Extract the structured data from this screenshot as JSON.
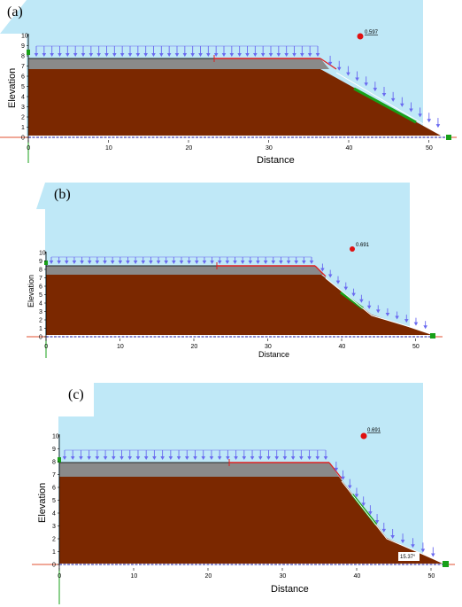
{
  "panels": [
    {
      "label": "(a)",
      "fos": "0.597",
      "xlabel": "Distance",
      "ylabel": "Elevation",
      "angle": ""
    },
    {
      "label": "(b)",
      "fos": "0.691",
      "xlabel": "Distance",
      "ylabel": "Elevation",
      "angle": ""
    },
    {
      "label": "(c)",
      "fos": "0.691",
      "xlabel": "Distance",
      "ylabel": "Elevation",
      "angle": "15.37°"
    }
  ],
  "x_ticks": [
    "0",
    "10",
    "20",
    "30",
    "40",
    "50"
  ],
  "y_ticks": [
    "0",
    "1",
    "2",
    "3",
    "4",
    "5",
    "6",
    "7",
    "8",
    "9",
    "10"
  ],
  "colors": {
    "sky": "#bfe8f7",
    "soil": "#7b2800",
    "fill_layer": "#8a8a8a",
    "load_arrows": "#6a6af0",
    "slip_line": "#e02020",
    "fos_point": "#e01010",
    "axis_red": "#e05030",
    "base_blue": "#1a1aa0",
    "slip_green": "#18a018"
  }
}
